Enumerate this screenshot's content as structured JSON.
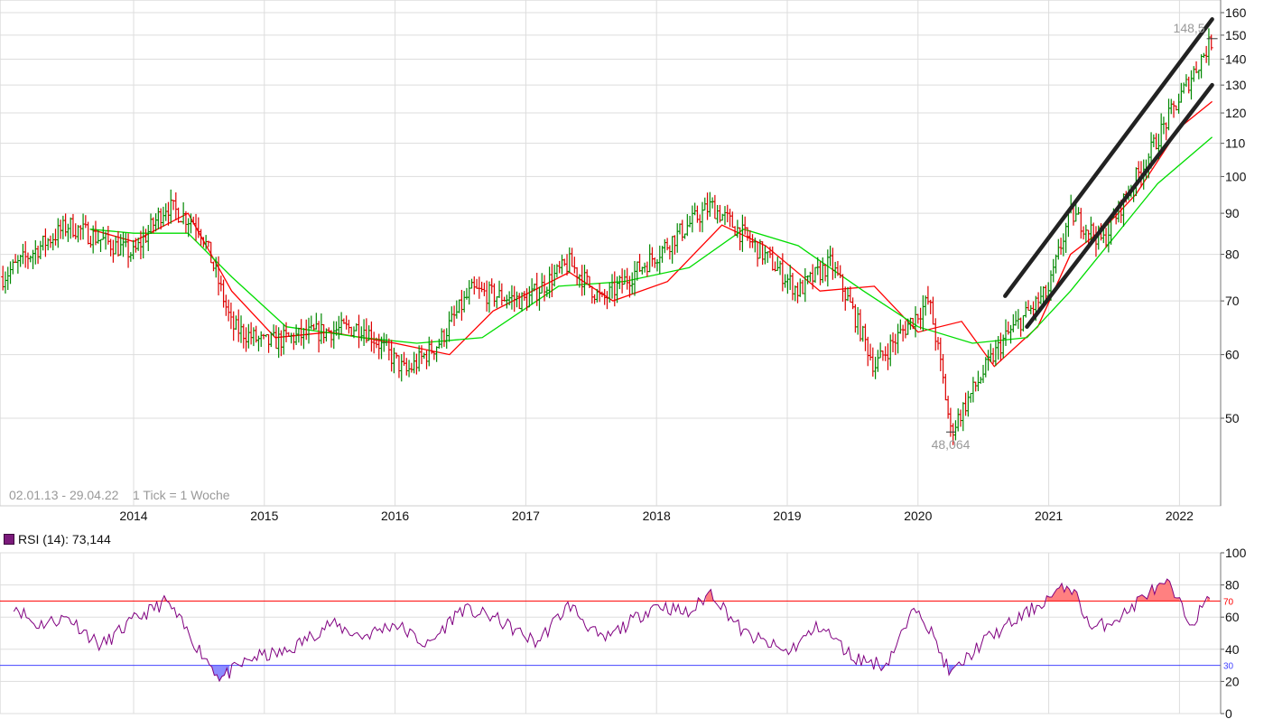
{
  "chart_data": [
    {
      "type": "ohlc",
      "frequency": "weekly",
      "date_range_label": "02.01.13 - 29.04.22",
      "tick_label": "1 Tick = 1 Woche",
      "y_scale": "log",
      "y_ticks": [
        50,
        60,
        70,
        80,
        90,
        100,
        110,
        120,
        130,
        140,
        150,
        160
      ],
      "x_ticks": [
        "2014",
        "2015",
        "2016",
        "2017",
        "2018",
        "2019",
        "2020",
        "2021",
        "2022"
      ],
      "annotations": {
        "high": "148,5",
        "low": "48,064"
      },
      "price_trend": {
        "dates": [
          "2013-01",
          "2013-07",
          "2014-01",
          "2014-04",
          "2014-07",
          "2014-10",
          "2015-01",
          "2015-06",
          "2015-10",
          "2016-02",
          "2016-05",
          "2016-08",
          "2017-01",
          "2017-05",
          "2017-08",
          "2018-01",
          "2018-06",
          "2018-10",
          "2019-02",
          "2019-05",
          "2019-09",
          "2020-02",
          "2020-04",
          "2020-09",
          "2021-01",
          "2021-03",
          "2021-06",
          "2021-10",
          "2022-01",
          "2022-04"
        ],
        "values": [
          75,
          87,
          80,
          92,
          87,
          65,
          62,
          64,
          65,
          57,
          62,
          72,
          70,
          78,
          70,
          80,
          92,
          82,
          72,
          78,
          58,
          70,
          48,
          63,
          72,
          90,
          83,
          105,
          125,
          148
        ]
      },
      "moving_averages": [
        {
          "color": "#ff0000",
          "dates": [
            "2013-09",
            "2014-01",
            "2014-06",
            "2014-10",
            "2015-02",
            "2015-07",
            "2016-01",
            "2016-06",
            "2016-10",
            "2017-05",
            "2017-09",
            "2018-02",
            "2018-07",
            "2018-11",
            "2019-04",
            "2019-09",
            "2020-01",
            "2020-05",
            "2020-08",
            "2020-12",
            "2021-03",
            "2021-06",
            "2021-09",
            "2022-01",
            "2022-04"
          ],
          "values": [
            86,
            83,
            90,
            72,
            63,
            64,
            62,
            60,
            68,
            76,
            70,
            74,
            87,
            82,
            72,
            73,
            64,
            66,
            58,
            65,
            80,
            86,
            95,
            115,
            124
          ]
        },
        {
          "color": "#00dd00",
          "dates": [
            "2013-09",
            "2014-01",
            "2014-06",
            "2014-10",
            "2015-03",
            "2015-10",
            "2016-03",
            "2016-09",
            "2017-04",
            "2017-10",
            "2018-04",
            "2018-09",
            "2019-02",
            "2019-08",
            "2020-01",
            "2020-06",
            "2020-11",
            "2021-03",
            "2021-07",
            "2021-11",
            "2022-04"
          ],
          "values": [
            86,
            85,
            85,
            75,
            65,
            63,
            62,
            63,
            73,
            74,
            77,
            86,
            82,
            72,
            65,
            62,
            63,
            72,
            84,
            98,
            112
          ]
        }
      ],
      "trendlines": [
        {
          "color": "#222222",
          "from": {
            "date": "2020-09",
            "value": 71
          },
          "to": {
            "date": "2022-04",
            "value": 157
          }
        },
        {
          "color": "#222222",
          "from": {
            "date": "2020-11",
            "value": 65
          },
          "to": {
            "date": "2022-04",
            "value": 130
          }
        }
      ]
    },
    {
      "type": "line",
      "title": "RSI (14): 73,144",
      "ylim": [
        0,
        100
      ],
      "y_ticks": [
        0,
        20,
        40,
        60,
        80,
        100
      ],
      "overbought": {
        "value": 70,
        "label": "70",
        "color": "#ff0000"
      },
      "oversold": {
        "value": 30,
        "label": "30",
        "color": "#4444ff"
      },
      "line_color": "#800080",
      "rsi_trend": {
        "dates": [
          "2013-02",
          "2013-04",
          "2013-07",
          "2013-10",
          "2014-01",
          "2014-04",
          "2014-07",
          "2014-09",
          "2014-12",
          "2015-03",
          "2015-07",
          "2015-10",
          "2016-01",
          "2016-04",
          "2016-07",
          "2016-10",
          "2017-02",
          "2017-05",
          "2017-08",
          "2018-01",
          "2018-04",
          "2018-06",
          "2018-09",
          "2019-01",
          "2019-04",
          "2019-07",
          "2019-10",
          "2020-01",
          "2020-04",
          "2020-07",
          "2020-10",
          "2021-01",
          "2021-03",
          "2021-05",
          "2021-08",
          "2021-10",
          "2021-12",
          "2022-02",
          "2022-04"
        ],
        "values": [
          68,
          55,
          60,
          42,
          58,
          70,
          40,
          22,
          35,
          38,
          56,
          48,
          56,
          42,
          65,
          60,
          44,
          68,
          45,
          68,
          62,
          76,
          50,
          38,
          55,
          35,
          30,
          68,
          24,
          45,
          58,
          72,
          80,
          52,
          62,
          75,
          80,
          56,
          73
        ]
      },
      "current_value": "73,144"
    }
  ]
}
